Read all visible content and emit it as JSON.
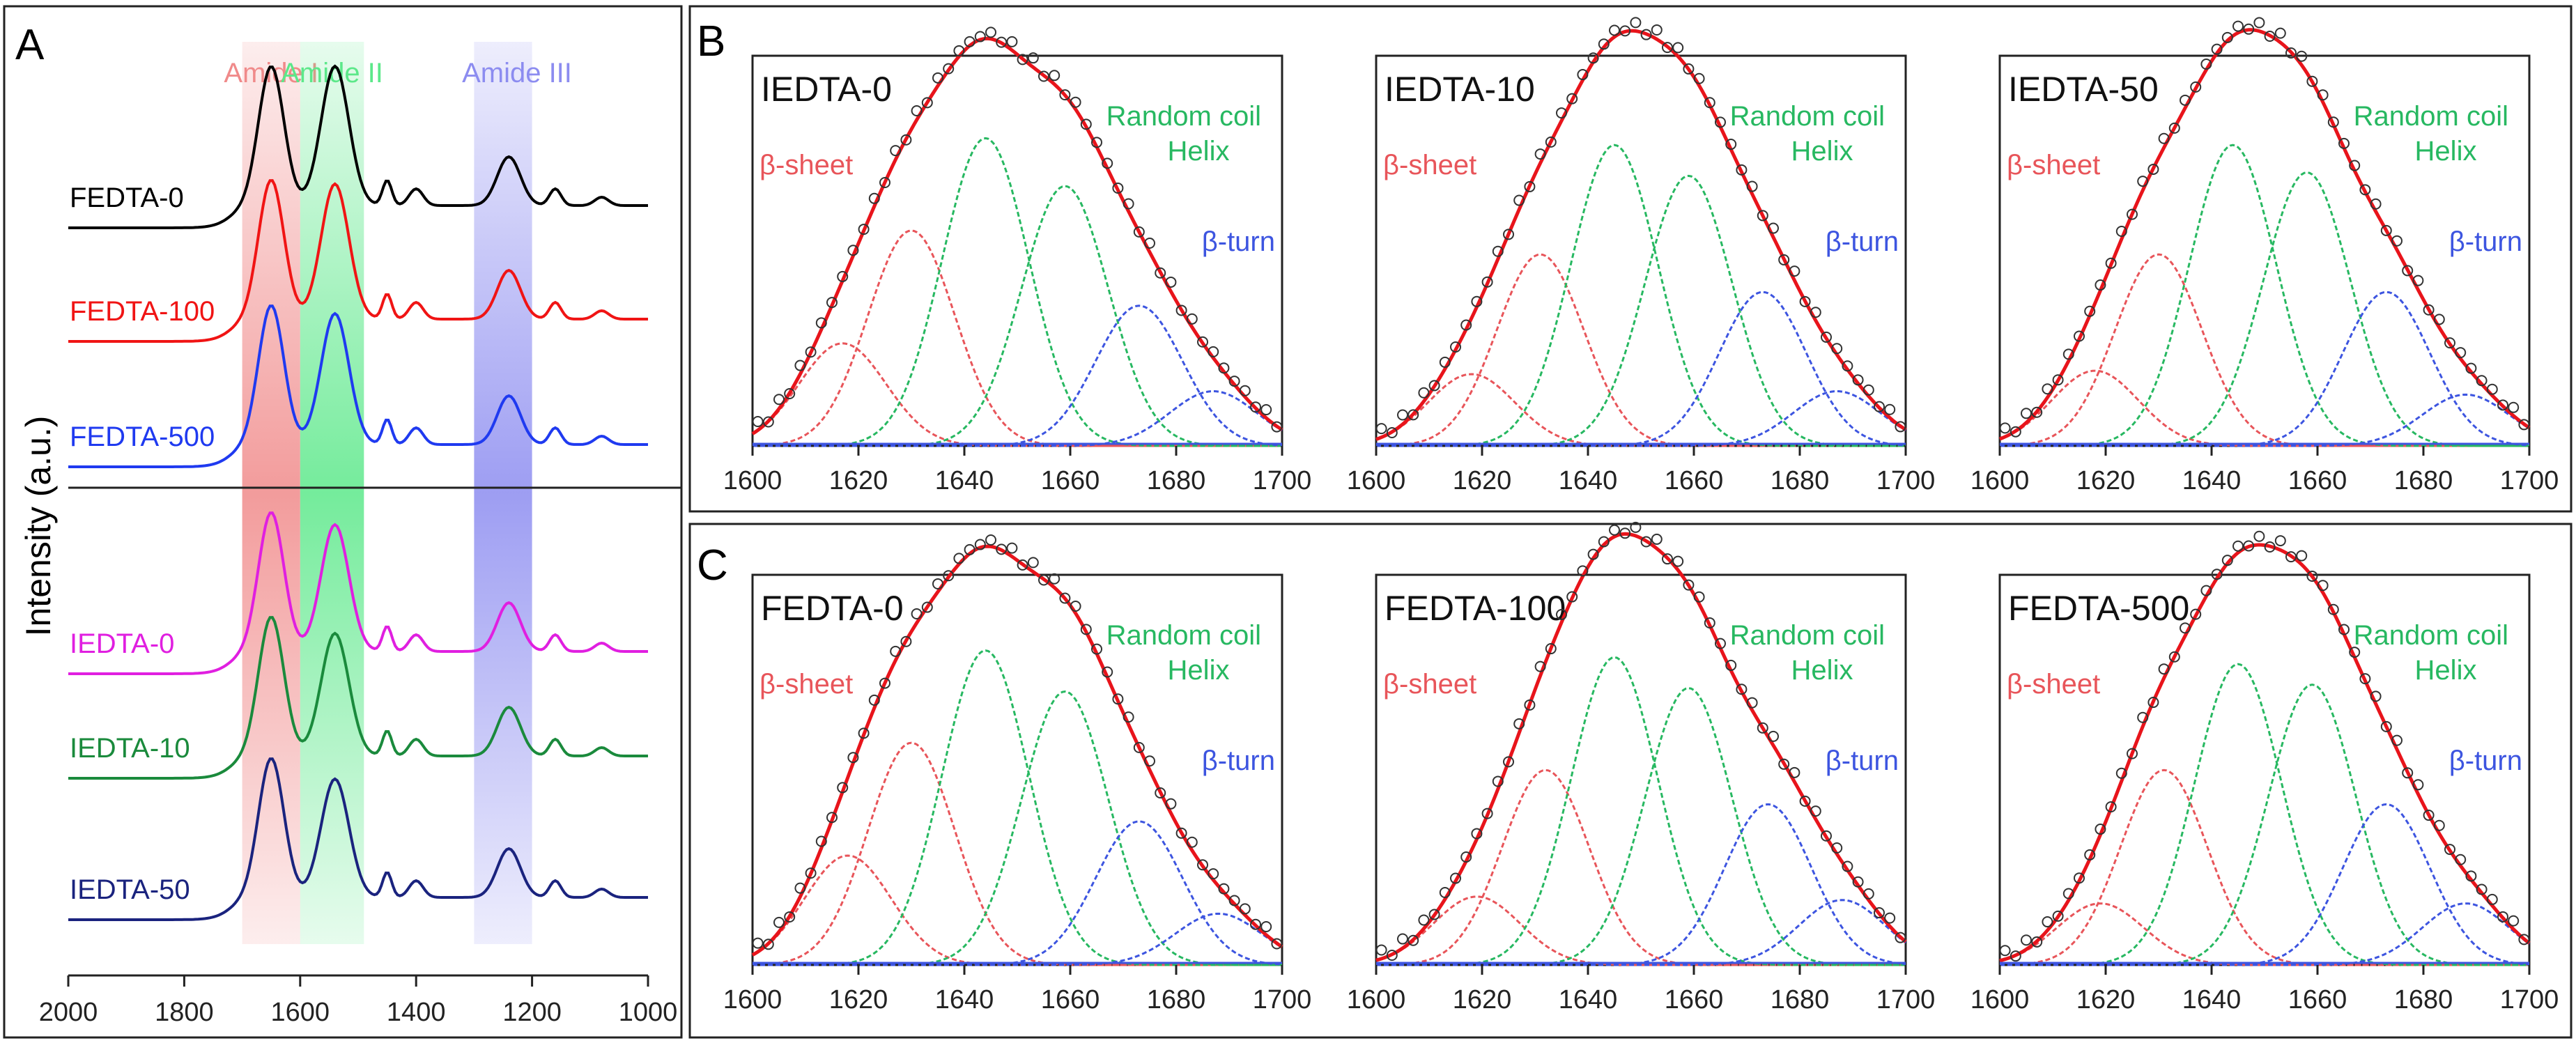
{
  "panel_labels": {
    "a": "A",
    "b": "B",
    "c": "C"
  },
  "colors": {
    "amide1_band": "#f08a8a",
    "amide2_band": "#5ce88a",
    "amide3_band": "#8c8cf0",
    "fit": "#e8141b",
    "beta_sheet": "#e8555a",
    "helix_coil": "#27b861",
    "beta_turn": "#3d55e0",
    "points": "#333333"
  },
  "chart_data": [
    {
      "panel": "A",
      "type": "line",
      "ylabel": "Intensity (a.u.)",
      "xlim": [
        2000,
        1000
      ],
      "x_ticks": [
        2000,
        1800,
        1600,
        1400,
        1200,
        1000
      ],
      "bands": [
        {
          "label": "Amide I",
          "range": [
            1700,
            1600
          ],
          "color": "#f08a8a"
        },
        {
          "label": "Amide II",
          "range": [
            1600,
            1490
          ],
          "color": "#5ce88a"
        },
        {
          "label": "Amide III",
          "range": [
            1300,
            1200
          ],
          "color": "#8c8cf0"
        }
      ],
      "series": [
        {
          "name": "IEDTA-50",
          "color": "#1a237e",
          "offset": 6.6
        },
        {
          "name": "IEDTA-10",
          "color": "#1a8a3c",
          "offset": 5.3
        },
        {
          "name": "IEDTA-0",
          "color": "#e01fe0",
          "offset": 4.0
        },
        {
          "name": "FEDTA-500",
          "color": "#1f3af0",
          "offset": 2.5
        },
        {
          "name": "FEDTA-100",
          "color": "#f01414",
          "offset": 1.3
        },
        {
          "name": "FEDTA-0",
          "color": "#000000",
          "offset": 0.0
        }
      ],
      "peaks_cm1": [
        1650,
        1540,
        1450,
        1400,
        1240,
        1160,
        1080
      ]
    },
    {
      "panel": "B",
      "type": "line",
      "xlim": [
        1600,
        1700
      ],
      "x_ticks": [
        1600,
        1620,
        1640,
        1660,
        1680,
        1700
      ],
      "subplots": [
        {
          "title": "IEDTA-0",
          "components": [
            {
              "name": "β-sheet",
              "center": 1617,
              "height": 0.3
            },
            {
              "name": "β-sheet",
              "center": 1630,
              "height": 0.63
            },
            {
              "name": "Random coil",
              "center": 1644,
              "height": 0.9
            },
            {
              "name": "Helix",
              "center": 1659,
              "height": 0.76
            },
            {
              "name": "β-turn",
              "center": 1673,
              "height": 0.41
            },
            {
              "name": "β-turn",
              "center": 1687,
              "height": 0.16
            }
          ]
        },
        {
          "title": "IEDTA-10",
          "components": [
            {
              "name": "β-sheet",
              "center": 1618,
              "height": 0.21
            },
            {
              "name": "β-sheet",
              "center": 1631,
              "height": 0.56
            },
            {
              "name": "Random coil",
              "center": 1645,
              "height": 0.88
            },
            {
              "name": "Helix",
              "center": 1659,
              "height": 0.79
            },
            {
              "name": "β-turn",
              "center": 1673,
              "height": 0.45
            },
            {
              "name": "β-turn",
              "center": 1687,
              "height": 0.16
            }
          ]
        },
        {
          "title": "IEDTA-50",
          "components": [
            {
              "name": "β-sheet",
              "center": 1618,
              "height": 0.22
            },
            {
              "name": "β-sheet",
              "center": 1630,
              "height": 0.56
            },
            {
              "name": "Random coil",
              "center": 1644,
              "height": 0.88
            },
            {
              "name": "Helix",
              "center": 1658,
              "height": 0.8
            },
            {
              "name": "β-turn",
              "center": 1673,
              "height": 0.45
            },
            {
              "name": "β-turn",
              "center": 1688,
              "height": 0.15
            }
          ]
        }
      ]
    },
    {
      "panel": "C",
      "type": "line",
      "xlim": [
        1600,
        1700
      ],
      "x_ticks": [
        1600,
        1620,
        1640,
        1660,
        1680,
        1700
      ],
      "subplots": [
        {
          "title": "FEDTA-0",
          "components": [
            {
              "name": "β-sheet",
              "center": 1618,
              "height": 0.32
            },
            {
              "name": "β-sheet",
              "center": 1630,
              "height": 0.65
            },
            {
              "name": "Random coil",
              "center": 1644,
              "height": 0.92
            },
            {
              "name": "Helix",
              "center": 1659,
              "height": 0.8
            },
            {
              "name": "β-turn",
              "center": 1673,
              "height": 0.42
            },
            {
              "name": "β-turn",
              "center": 1688,
              "height": 0.15
            }
          ]
        },
        {
          "title": "FEDTA-100",
          "components": [
            {
              "name": "β-sheet",
              "center": 1619,
              "height": 0.2
            },
            {
              "name": "β-sheet",
              "center": 1632,
              "height": 0.57
            },
            {
              "name": "Random coil",
              "center": 1645,
              "height": 0.9
            },
            {
              "name": "Helix",
              "center": 1659,
              "height": 0.81
            },
            {
              "name": "β-turn",
              "center": 1674,
              "height": 0.47
            },
            {
              "name": "β-turn",
              "center": 1688,
              "height": 0.19
            }
          ]
        },
        {
          "title": "FEDTA-500",
          "components": [
            {
              "name": "β-sheet",
              "center": 1619,
              "height": 0.18
            },
            {
              "name": "β-sheet",
              "center": 1631,
              "height": 0.57
            },
            {
              "name": "Random coil",
              "center": 1645,
              "height": 0.88
            },
            {
              "name": "Helix",
              "center": 1659,
              "height": 0.82
            },
            {
              "name": "β-turn",
              "center": 1673,
              "height": 0.47
            },
            {
              "name": "β-turn",
              "center": 1688,
              "height": 0.18
            }
          ]
        }
      ]
    }
  ],
  "annotations": {
    "beta_sheet": "β-sheet",
    "random_coil": "Random coil",
    "helix": "Helix",
    "beta_turn": "β-turn"
  }
}
